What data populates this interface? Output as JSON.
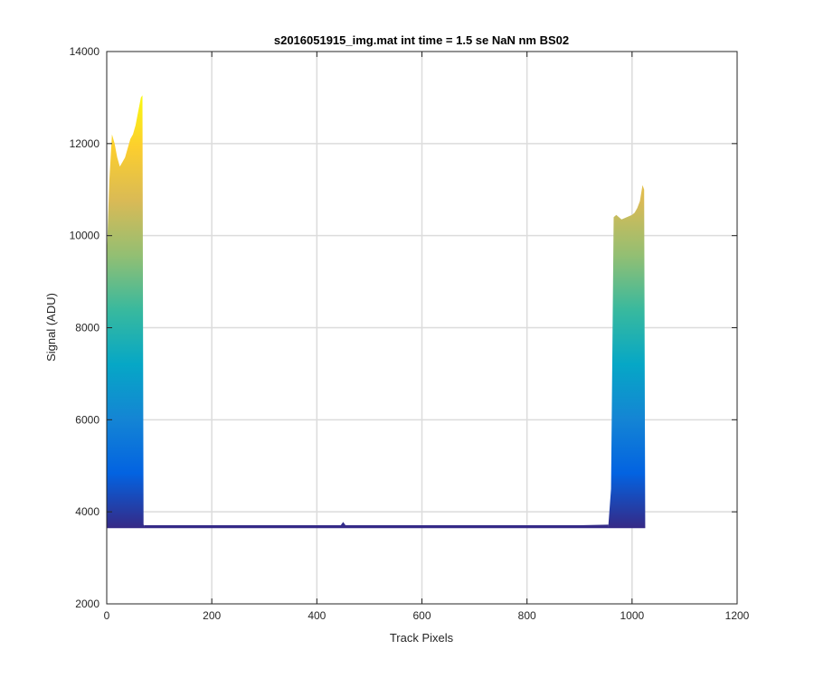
{
  "chart_data": {
    "type": "area",
    "title": "s2016051915_img.mat int time = 1.5 se  NaN nm BS02",
    "xlabel": "Track Pixels",
    "ylabel": "Signal (ADU)",
    "xlim": [
      0,
      1200
    ],
    "ylim": [
      2000,
      14000
    ],
    "xticks": [
      "0",
      "200",
      "400",
      "600",
      "800",
      "1000",
      "1200"
    ],
    "yticks": [
      "2000",
      "4000",
      "6000",
      "8000",
      "10000",
      "12000",
      "14000"
    ],
    "grid": true,
    "colormap": "parula",
    "colors": [
      "#352a87",
      "#0363e1",
      "#1485d4",
      "#06a7c6",
      "#38b99e",
      "#92bf73",
      "#d9ba56",
      "#fcce2e",
      "#f9fb0e"
    ],
    "series": [
      {
        "x": [
          0,
          5,
          10,
          15,
          20,
          25,
          30,
          35,
          40,
          45,
          50,
          55,
          60,
          65,
          68,
          70,
          72
        ],
        "peak": [
          9500,
          11200,
          12200,
          12000,
          11700,
          11500,
          11600,
          11700,
          11900,
          12100,
          12200,
          12400,
          12700,
          13000,
          13050,
          3720,
          3700
        ]
      },
      {
        "x": [
          72,
          200,
          400,
          445,
          450,
          455,
          600,
          800,
          955
        ],
        "peak": [
          3700,
          3680,
          3685,
          3700,
          3780,
          3700,
          3685,
          3690,
          3720
        ]
      },
      {
        "x": [
          955,
          960,
          965,
          970,
          980,
          990,
          1000,
          1005,
          1010,
          1015,
          1020,
          1023,
          1025
        ],
        "peak": [
          3720,
          4500,
          10400,
          10450,
          10350,
          10400,
          10450,
          10500,
          10600,
          10750,
          11100,
          11000,
          3680
        ]
      }
    ],
    "baseline": 3660
  }
}
